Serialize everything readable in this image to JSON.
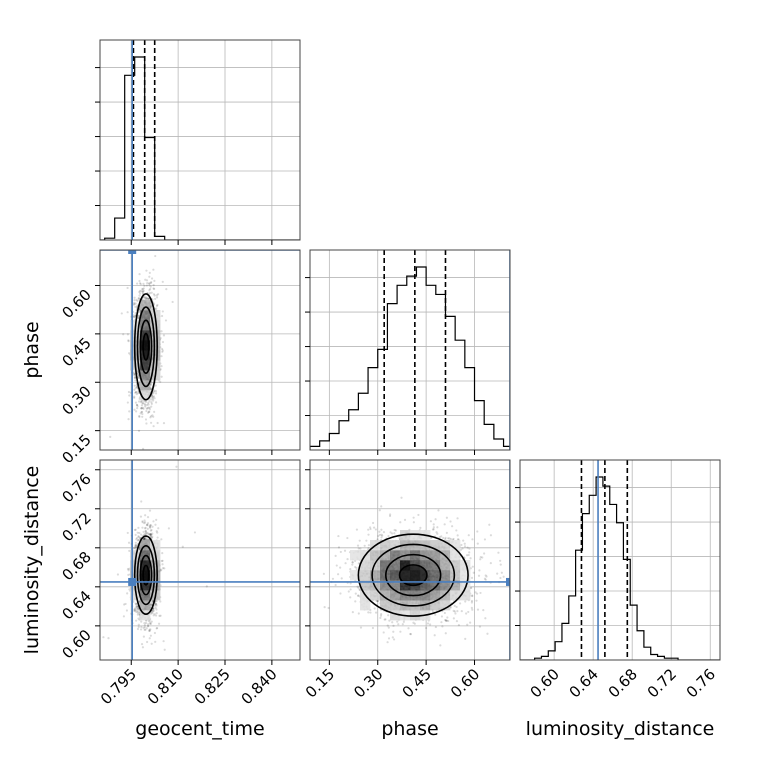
{
  "chart_data": {
    "type": "corner",
    "parameters": [
      "geocent_time",
      "phase",
      "luminosity_distance"
    ],
    "truth_color": "#4a7fbf",
    "grid": true,
    "axes": {
      "geocent_time": {
        "range": [
          0.785,
          0.849
        ],
        "ticks": [
          0.795,
          0.81,
          0.825,
          0.84
        ],
        "tick_labels": [
          "0.795",
          "0.810",
          "0.825",
          "0.840"
        ],
        "truth": 0.7953,
        "quantiles": [
          0.7957,
          0.7993,
          0.8025
        ]
      },
      "phase": {
        "range": [
          0.09,
          0.71
        ],
        "ticks": [
          0.15,
          0.3,
          0.45,
          0.6
        ],
        "tick_labels": [
          "0.15",
          "0.30",
          "0.45",
          "0.60"
        ],
        "truth": 0.71,
        "quantiles": [
          0.32,
          0.415,
          0.51
        ]
      },
      "luminosity_distance": {
        "range": [
          0.565,
          0.77
        ],
        "ticks": [
          0.6,
          0.64,
          0.68,
          0.72,
          0.76
        ],
        "tick_labels": [
          "0.60",
          "0.64",
          "0.68",
          "0.72",
          "0.76"
        ],
        "truth": 0.645,
        "quantiles": [
          0.628,
          0.652,
          0.675
        ]
      }
    },
    "histograms": {
      "geocent_time": {
        "bin_edges": [
          0.7865,
          0.7897,
          0.7929,
          0.7961,
          0.7993,
          0.8025,
          0.8057,
          0.8089
        ],
        "counts": [
          0.01,
          0.12,
          0.9,
          1.0,
          0.56,
          0.02,
          0.0
        ]
      },
      "phase": {
        "bin_edges": [
          0.09,
          0.12,
          0.15,
          0.18,
          0.21,
          0.24,
          0.27,
          0.3,
          0.33,
          0.36,
          0.39,
          0.42,
          0.45,
          0.48,
          0.51,
          0.54,
          0.57,
          0.6,
          0.63,
          0.66,
          0.69,
          0.71
        ],
        "counts": [
          0.02,
          0.05,
          0.09,
          0.16,
          0.22,
          0.31,
          0.45,
          0.55,
          0.8,
          0.9,
          0.95,
          1.0,
          0.9,
          0.85,
          0.73,
          0.6,
          0.45,
          0.27,
          0.14,
          0.06,
          0.02
        ]
      },
      "luminosity_distance": {
        "bin_edges": [
          0.58,
          0.587,
          0.594,
          0.601,
          0.608,
          0.615,
          0.622,
          0.629,
          0.636,
          0.643,
          0.65,
          0.657,
          0.664,
          0.671,
          0.678,
          0.685,
          0.692,
          0.699,
          0.706,
          0.713,
          0.72,
          0.727,
          0.734
        ],
        "counts": [
          0.01,
          0.02,
          0.05,
          0.1,
          0.2,
          0.35,
          0.6,
          0.8,
          0.9,
          1.0,
          0.95,
          0.85,
          0.75,
          0.55,
          0.3,
          0.16,
          0.07,
          0.03,
          0.02,
          0.01,
          0.01,
          0.0
        ]
      }
    },
    "joint_2d": [
      {
        "x": "geocent_time",
        "y": "phase",
        "center": [
          0.7997,
          0.41
        ],
        "sigma": [
          0.0018,
          0.082
        ],
        "rho": 0.0,
        "sample_count": 2600,
        "outliers": 45
      },
      {
        "x": "geocent_time",
        "y": "luminosity_distance",
        "center": [
          0.7997,
          0.652
        ],
        "sigma": [
          0.0018,
          0.02
        ],
        "rho": 0.0,
        "sample_count": 2600,
        "outliers": 25
      },
      {
        "x": "phase",
        "y": "luminosity_distance",
        "center": [
          0.41,
          0.652
        ],
        "sigma": [
          0.085,
          0.021
        ],
        "rho": 0.0,
        "sample_count": 2800,
        "outliers": 0
      }
    ]
  }
}
